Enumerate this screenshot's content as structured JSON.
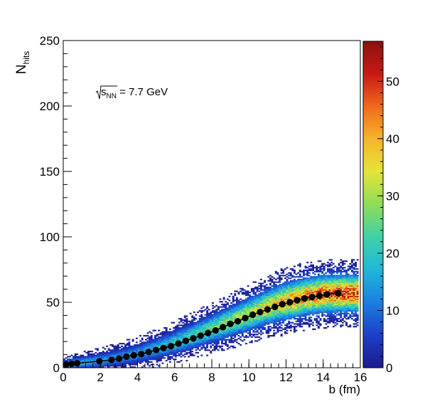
{
  "chart_data": {
    "type": "heatmap",
    "xlabel": "b (fm)",
    "ylabel": {
      "main": "N",
      "sub": "hits"
    },
    "annotation": {
      "sqrt": "s",
      "sub": "NN",
      "rest": " = 7.7 GeV"
    },
    "xlim": [
      0,
      16
    ],
    "ylim": [
      0,
      250
    ],
    "x_ticks": [
      "0",
      "2",
      "4",
      "6",
      "8",
      "10",
      "12",
      "14",
      "16"
    ],
    "y_ticks": [
      "0",
      "50",
      "100",
      "150",
      "200",
      "250"
    ],
    "colorbar": {
      "range": [
        0,
        57
      ],
      "ticks": [
        "0",
        "10",
        "20",
        "30",
        "40",
        "50"
      ],
      "palette": [
        "#1c1b8e",
        "#1d3fc6",
        "#1b7fe0",
        "#22b7d8",
        "#3fd1a6",
        "#8fdc58",
        "#e4e43a",
        "#f7b52b",
        "#ee6a1c",
        "#c81a14",
        "#8a1210"
      ]
    },
    "band": {
      "color_max": 57,
      "x_range": [
        0,
        15.9
      ],
      "mean_x": [
        0,
        1,
        2,
        3,
        4,
        5,
        6,
        7,
        8,
        9,
        10,
        11,
        12,
        13,
        14,
        15,
        15.9
      ],
      "mean_y": [
        2.5,
        4,
        5.5,
        8,
        11,
        15,
        19.5,
        24.5,
        30,
        35.5,
        41,
        46.5,
        51,
        54.5,
        56.5,
        57,
        57
      ],
      "sigma_y": [
        2,
        2.5,
        3,
        3.5,
        4,
        4.5,
        5,
        5.5,
        6,
        6.5,
        7,
        7.5,
        8,
        8,
        8,
        8,
        8
      ],
      "peak_z": [
        18,
        16,
        14,
        13,
        14,
        16,
        19,
        22,
        25,
        28,
        31,
        35,
        39,
        43,
        46,
        48,
        48
      ]
    },
    "profile": {
      "x": [
        0.15,
        0.45,
        0.75,
        1.95,
        2.6,
        3.0,
        3.4,
        3.8,
        4.2,
        4.6,
        5.0,
        5.4,
        5.8,
        6.2,
        6.6,
        7.0,
        7.4,
        7.8,
        8.2,
        8.6,
        9.0,
        9.4,
        9.8,
        10.2,
        10.6,
        11.0,
        11.4,
        11.8,
        12.2,
        12.6,
        13.0,
        13.4,
        13.8,
        14.2,
        14.8
      ],
      "y": [
        2.5,
        3,
        3.5,
        5,
        6,
        7,
        8.5,
        9.5,
        10.5,
        12,
        13.5,
        15,
        16.5,
        18.5,
        20.5,
        22.5,
        24.5,
        26.5,
        28.5,
        31,
        33.5,
        35.5,
        38,
        40.5,
        42.5,
        44.5,
        46.5,
        48.5,
        50,
        51.5,
        53,
        54,
        55,
        56,
        57
      ]
    }
  }
}
